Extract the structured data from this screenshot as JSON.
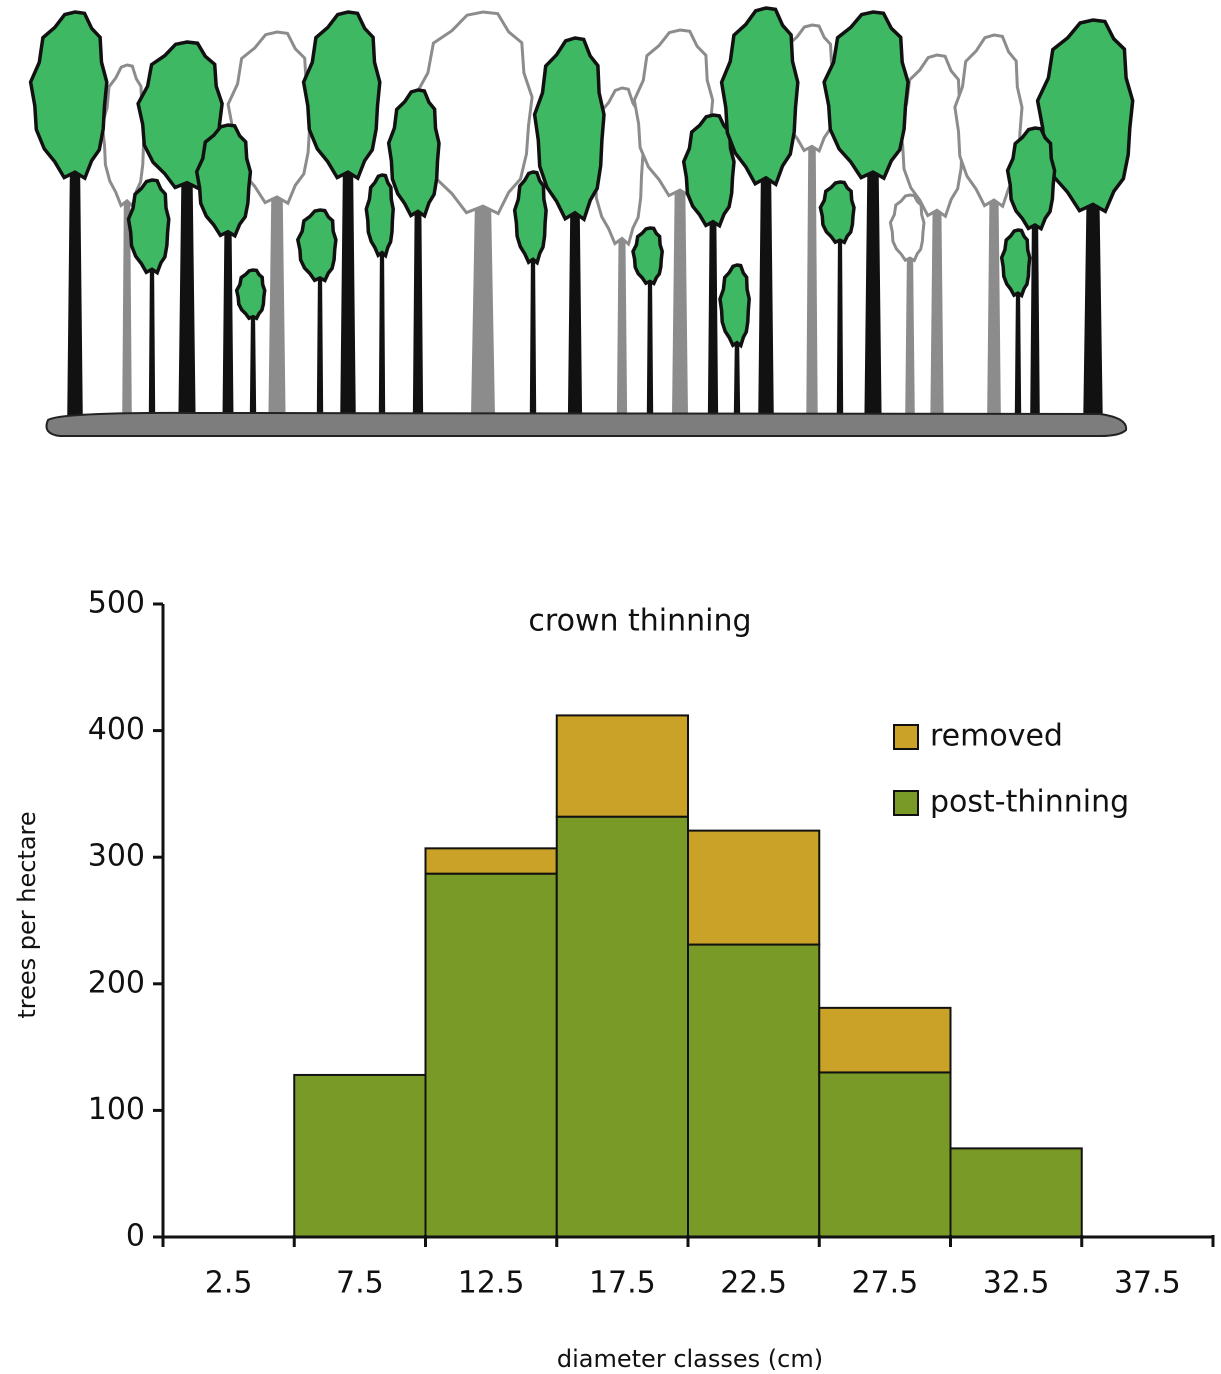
{
  "chart_data": {
    "type": "bar",
    "stacked": true,
    "title": "crown thinning",
    "x_label": "diameter classes (cm)",
    "y_label": "trees per hectare",
    "categories": [
      "2.5",
      "7.5",
      "12.5",
      "17.5",
      "22.5",
      "27.5",
      "32.5",
      "37.5"
    ],
    "series": [
      {
        "name": "removed",
        "color": "#c9a227",
        "values": [
          0,
          0,
          20,
          80,
          90,
          51,
          0,
          0
        ]
      },
      {
        "name": "post-thinning",
        "color": "#7a9a27",
        "values": [
          0,
          128,
          287,
          332,
          231,
          130,
          70,
          0
        ]
      }
    ],
    "ylim": [
      0,
      500
    ],
    "yticks": [
      0,
      100,
      200,
      300,
      400,
      500
    ],
    "legend": "upper right"
  }
}
